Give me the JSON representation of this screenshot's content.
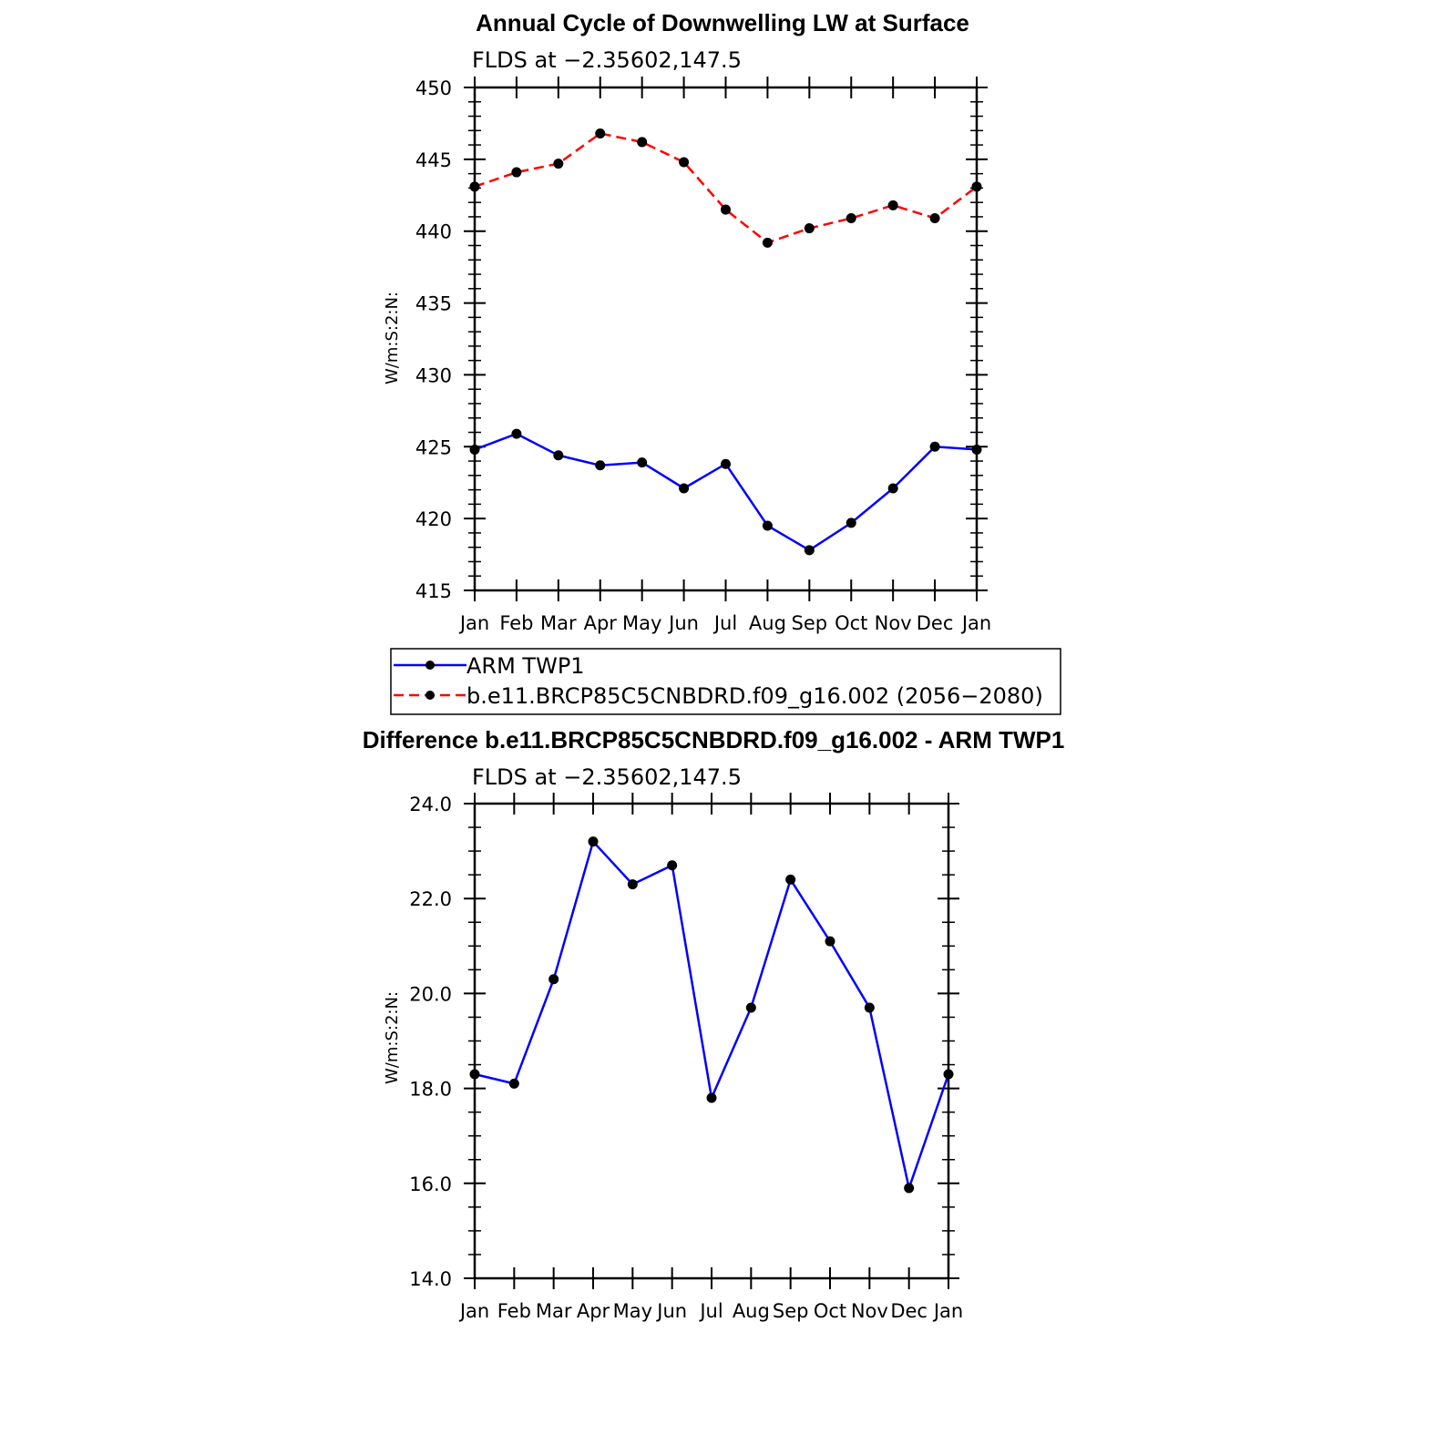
{
  "chart_data": [
    {
      "type": "line",
      "title": "Annual Cycle of Downwelling LW at Surface",
      "subtitle": "FLDS at −2.35602,147.5",
      "ylabel": "W/m:S:2:N:",
      "categories": [
        "Jan",
        "Feb",
        "Mar",
        "Apr",
        "May",
        "Jun",
        "Jul",
        "Aug",
        "Sep",
        "Oct",
        "Nov",
        "Dec",
        "Jan"
      ],
      "ylim": [
        415,
        450
      ],
      "yticks": [
        "415",
        "420",
        "425",
        "430",
        "435",
        "440",
        "445",
        "450"
      ],
      "series": [
        {
          "name": "ARM  TWP1",
          "color": "#0000ff",
          "dash": "solid",
          "values": [
            424.8,
            425.9,
            424.4,
            423.7,
            423.9,
            422.1,
            423.8,
            419.5,
            417.8,
            419.7,
            422.1,
            425.0,
            424.8
          ]
        },
        {
          "name": "b.e11.BRCP85C5CNBDRD.f09_g16.002 (2056−2080)",
          "color": "#ff0000",
          "dash": "dashed",
          "values": [
            443.1,
            444.1,
            444.7,
            446.8,
            446.2,
            444.8,
            441.5,
            439.2,
            440.2,
            440.9,
            441.8,
            440.9,
            443.1
          ]
        }
      ],
      "legend": "below"
    },
    {
      "type": "line",
      "title": "Difference b.e11.BRCP85C5CNBDRD.f09_g16.002 - ARM TWP1",
      "subtitle": "FLDS at −2.35602,147.5",
      "ylabel": "W/m:S:2:N:",
      "categories": [
        "Jan",
        "Feb",
        "Mar",
        "Apr",
        "May",
        "Jun",
        "Jul",
        "Aug",
        "Sep",
        "Oct",
        "Nov",
        "Dec",
        "Jan"
      ],
      "ylim": [
        14.0,
        24.0
      ],
      "yticks": [
        "14.0",
        "16.0",
        "18.0",
        "20.0",
        "22.0",
        "24.0"
      ],
      "series": [
        {
          "color": "#0000ff",
          "dash": "solid",
          "values": [
            18.3,
            18.1,
            20.3,
            23.2,
            22.3,
            22.7,
            17.8,
            19.7,
            22.4,
            21.1,
            19.7,
            15.9,
            18.3
          ]
        }
      ]
    }
  ]
}
